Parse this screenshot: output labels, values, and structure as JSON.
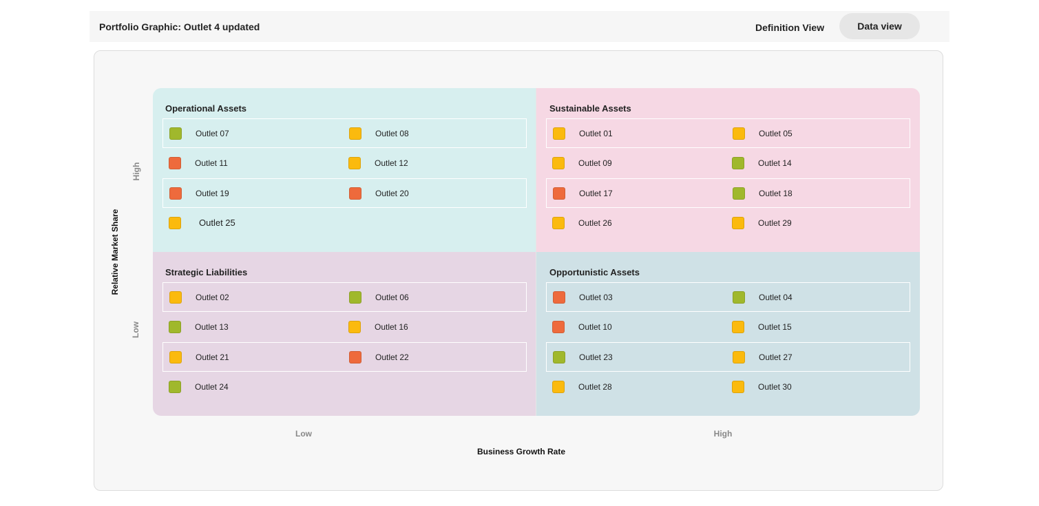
{
  "header": {
    "title": "Portfolio Graphic: Outlet 4 updated",
    "definition_view": "Definition View",
    "data_view": "Data view"
  },
  "axes": {
    "y_title": "Relative Market Share",
    "y_high": "High",
    "y_low": "Low",
    "x_title": "Business Growth Rate",
    "x_low": "Low",
    "x_high": "High"
  },
  "colors": {
    "green": "#a0b82c",
    "yellow": "#fbba0e",
    "red": "#ee6a3c"
  },
  "quadrants": {
    "top_left": {
      "title": "Operational Assets",
      "items": [
        {
          "label": "Outlet 07",
          "status": "green"
        },
        {
          "label": "Outlet 08",
          "status": "yellow"
        },
        {
          "label": "Outlet 11",
          "status": "red"
        },
        {
          "label": "Outlet 12",
          "status": "yellow"
        },
        {
          "label": "Outlet 19",
          "status": "red"
        },
        {
          "label": "Outlet 20",
          "status": "red"
        },
        {
          "label": "Outlet 25",
          "status": "yellow"
        }
      ]
    },
    "top_right": {
      "title": "Sustainable Assets",
      "items": [
        {
          "label": "Outlet 01",
          "status": "yellow"
        },
        {
          "label": "Outlet 05",
          "status": "yellow"
        },
        {
          "label": "Outlet 09",
          "status": "yellow"
        },
        {
          "label": "Outlet 14",
          "status": "green"
        },
        {
          "label": "Outlet 17",
          "status": "red"
        },
        {
          "label": "Outlet 18",
          "status": "green"
        },
        {
          "label": "Outlet 26",
          "status": "yellow"
        },
        {
          "label": "Outlet 29",
          "status": "yellow"
        }
      ]
    },
    "bottom_left": {
      "title": "Strategic Liabilities",
      "items": [
        {
          "label": "Outlet 02",
          "status": "yellow"
        },
        {
          "label": "Outlet 06",
          "status": "green"
        },
        {
          "label": "Outlet 13",
          "status": "green"
        },
        {
          "label": "Outlet 16",
          "status": "yellow"
        },
        {
          "label": "Outlet 21",
          "status": "yellow"
        },
        {
          "label": "Outlet 22",
          "status": "red"
        },
        {
          "label": "Outlet 24",
          "status": "green"
        }
      ]
    },
    "bottom_right": {
      "title": "Opportunistic Assets",
      "items": [
        {
          "label": "Outlet 03",
          "status": "red"
        },
        {
          "label": "Outlet 04",
          "status": "green"
        },
        {
          "label": "Outlet 10",
          "status": "red"
        },
        {
          "label": "Outlet 15",
          "status": "yellow"
        },
        {
          "label": "Outlet 23",
          "status": "green"
        },
        {
          "label": "Outlet 27",
          "status": "yellow"
        },
        {
          "label": "Outlet 28",
          "status": "yellow"
        },
        {
          "label": "Outlet 30",
          "status": "yellow"
        }
      ]
    }
  }
}
